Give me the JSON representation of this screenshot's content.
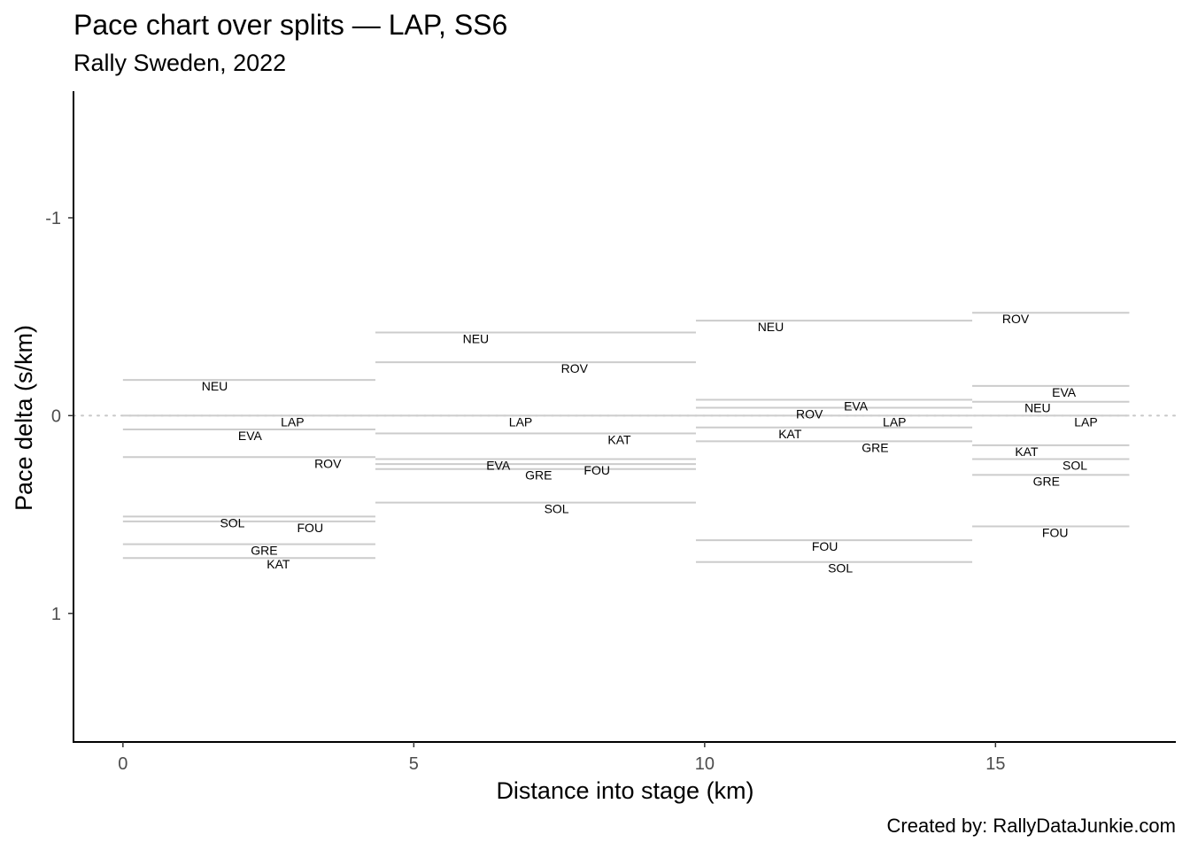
{
  "chart_data": {
    "type": "line",
    "title": "Pace chart over splits — LAP, SS6",
    "subtitle": "Rally Sweden, 2022",
    "caption": "Created by: RallyDataJunkie.com",
    "xlabel": "Distance into stage (km)",
    "ylabel": "Pace delta (s/km)",
    "xlim": [
      -0.85,
      18.1
    ],
    "ylim": [
      -1.64,
      1.65
    ],
    "y_reversed": true,
    "x_ticks": [
      0,
      5,
      10,
      15
    ],
    "y_ticks": [
      -1,
      0,
      1
    ],
    "y_tick_labels": [
      "-1",
      "0",
      "1"
    ],
    "reference_line": 0,
    "splits": [
      {
        "start": 0,
        "end": 4.34,
        "label_x": 2.55,
        "series": [
          {
            "name": "NEU",
            "value": -0.18
          },
          {
            "name": "LAP",
            "value": 0.0
          },
          {
            "name": "EVA",
            "value": 0.07
          },
          {
            "name": "ROV",
            "value": 0.21
          },
          {
            "name": "SOL",
            "value": 0.51
          },
          {
            "name": "FOU",
            "value": 0.535
          },
          {
            "name": "GRE",
            "value": 0.65
          },
          {
            "name": "KAT",
            "value": 0.72
          }
        ]
      },
      {
        "start": 4.34,
        "end": 9.85,
        "label_x": 7.3,
        "series": [
          {
            "name": "NEU",
            "value": -0.42
          },
          {
            "name": "ROV",
            "value": -0.27
          },
          {
            "name": "LAP",
            "value": 0.0
          },
          {
            "name": "KAT",
            "value": 0.09
          },
          {
            "name": "EVA",
            "value": 0.22
          },
          {
            "name": "FOU",
            "value": 0.245
          },
          {
            "name": "GRE",
            "value": 0.27
          },
          {
            "name": "SOL",
            "value": 0.44
          }
        ]
      },
      {
        "start": 9.85,
        "end": 14.6,
        "label_x": 12.2,
        "series": [
          {
            "name": "NEU",
            "value": -0.48
          },
          {
            "name": "EVA",
            "value": -0.08
          },
          {
            "name": "ROV",
            "value": -0.04
          },
          {
            "name": "LAP",
            "value": 0.0
          },
          {
            "name": "KAT",
            "value": 0.06
          },
          {
            "name": "GRE",
            "value": 0.13
          },
          {
            "name": "FOU",
            "value": 0.63
          },
          {
            "name": "SOL",
            "value": 0.74
          }
        ]
      },
      {
        "start": 14.6,
        "end": 17.3,
        "label_x": 15.95,
        "series": [
          {
            "name": "ROV",
            "value": -0.52
          },
          {
            "name": "EVA",
            "value": -0.15
          },
          {
            "name": "NEU",
            "value": -0.07
          },
          {
            "name": "LAP",
            "value": 0.0
          },
          {
            "name": "KAT",
            "value": 0.15
          },
          {
            "name": "SOL",
            "value": 0.22
          },
          {
            "name": "GRE",
            "value": 0.3
          },
          {
            "name": "FOU",
            "value": 0.56
          }
        ]
      }
    ],
    "colors": {
      "segment": "#cccccc",
      "reference": "#c8c8c8",
      "axis": "#000000",
      "tick_text": "#4d4d4d"
    }
  }
}
